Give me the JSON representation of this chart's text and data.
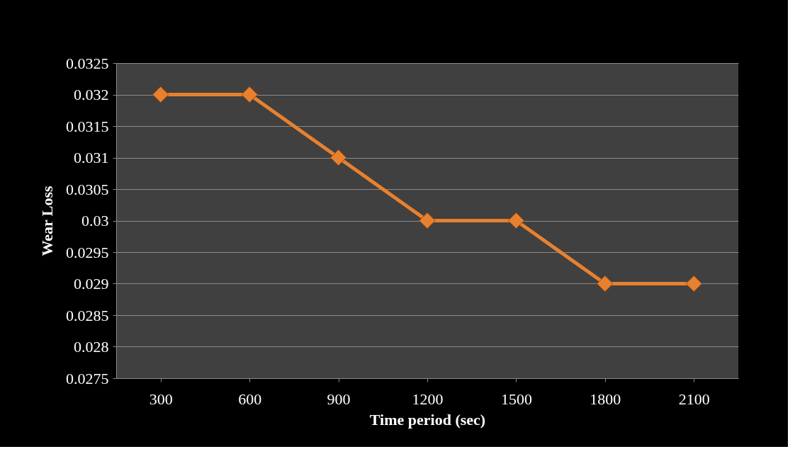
{
  "chart_data": {
    "type": "line",
    "xlabel": "Time period (sec)",
    "ylabel": "Wear Loss",
    "categories": [
      "300",
      "600",
      "900",
      "1200",
      "1500",
      "1800",
      "2100"
    ],
    "series": [
      {
        "color": "#e8812f",
        "values": [
          0.032,
          0.032,
          0.031,
          0.03,
          0.03,
          0.029,
          0.029
        ]
      }
    ],
    "ylim": [
      0.0275,
      0.0325
    ],
    "yticks": [
      0.0275,
      0.028,
      0.0285,
      0.029,
      0.0295,
      0.03,
      0.0305,
      0.031,
      0.0315,
      0.032,
      0.0325
    ],
    "grid": "y",
    "marker": "diamond",
    "line_style": "solid"
  }
}
